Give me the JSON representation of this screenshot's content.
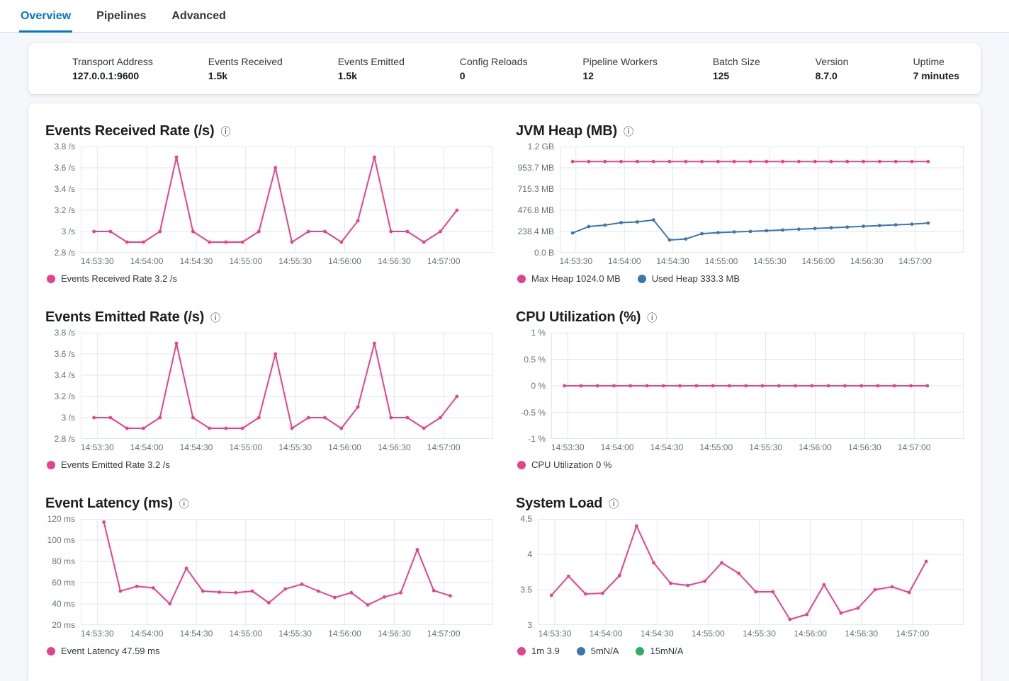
{
  "tabs": [
    {
      "label": "Overview",
      "active": true
    },
    {
      "label": "Pipelines",
      "active": false
    },
    {
      "label": "Advanced",
      "active": false
    }
  ],
  "stats": {
    "items": [
      {
        "label": "Transport Address",
        "value": "127.0.0.1:9600"
      },
      {
        "label": "Events Received",
        "value": "1.5k"
      },
      {
        "label": "Events Emitted",
        "value": "1.5k"
      },
      {
        "label": "Config Reloads",
        "value": "0"
      },
      {
        "label": "Pipeline Workers",
        "value": "12"
      },
      {
        "label": "Batch Size",
        "value": "125"
      },
      {
        "label": "Version",
        "value": "8.7.0"
      },
      {
        "label": "Uptime",
        "value": "7 minutes"
      }
    ]
  },
  "ui": {
    "info_icon": "ⓘ"
  },
  "colors": {
    "accent_blue": "#0077cc",
    "pink": "#e8418c",
    "blue": "#3c76b0",
    "green": "#2dae67",
    "grid": "#e3e6ec"
  },
  "chart_data": [
    {
      "type": "line",
      "title": "Events Received Rate (/s)",
      "x_ticks": [
        "14:53:30",
        "14:54:00",
        "14:54:30",
        "14:55:00",
        "14:55:30",
        "14:56:00",
        "14:56:30",
        "14:57:00"
      ],
      "x_tick_interval_s": 30,
      "x_domain": [
        -10,
        240
      ],
      "y_ticks": [
        "3.8 /s",
        "3.6 /s",
        "3.4 /s",
        "3.2 /s",
        "3 /s",
        "2.8 /s"
      ],
      "ylim": [
        2.8,
        3.8
      ],
      "grid": true,
      "series": [
        {
          "name": "Events Received Rate",
          "color": "#e8418c",
          "t0": -2,
          "step": 10,
          "values": [
            3,
            3,
            2.9,
            2.9,
            3,
            3.7,
            3,
            2.9,
            2.9,
            2.9,
            3,
            3.6,
            2.9,
            3,
            3,
            2.9,
            3.1,
            3.7,
            3,
            3,
            2.9,
            3,
            3.2
          ]
        }
      ],
      "legend": [
        {
          "label": "Events Received Rate 3.2 /s",
          "color": "#e8418c"
        }
      ]
    },
    {
      "type": "line",
      "title": "JVM Heap (MB)",
      "x_ticks": [
        "14:53:30",
        "14:54:00",
        "14:54:30",
        "14:55:00",
        "14:55:30",
        "14:56:00",
        "14:56:30",
        "14:57:00"
      ],
      "x_tick_interval_s": 30,
      "x_domain": [
        -10,
        240
      ],
      "y_ticks": [
        "1.2 GB",
        "953.7 MB",
        "715.3 MB",
        "476.8 MB",
        "238.4 MB",
        "0.0 B"
      ],
      "ylim": [
        0,
        1192.1
      ],
      "grid": true,
      "series": [
        {
          "name": "Max Heap",
          "color": "#e8418c",
          "t0": -2,
          "step": 10,
          "values": [
            1024,
            1024,
            1024,
            1024,
            1024,
            1024,
            1024,
            1024,
            1024,
            1024,
            1024,
            1024,
            1024,
            1024,
            1024,
            1024,
            1024,
            1024,
            1024,
            1024,
            1024,
            1024,
            1024
          ]
        },
        {
          "name": "Used Heap",
          "color": "#3c76b0",
          "t0": -2,
          "step": 10,
          "values": [
            222,
            294,
            310,
            338,
            346,
            368,
            143,
            154,
            214,
            226,
            234,
            239,
            247,
            255,
            264,
            272,
            280,
            288,
            297,
            305,
            313,
            321,
            333.3
          ]
        }
      ],
      "legend": [
        {
          "label": "Max Heap 1024.0 MB",
          "color": "#e8418c"
        },
        {
          "label": "Used Heap 333.3 MB",
          "color": "#3c76b0"
        }
      ]
    },
    {
      "type": "line",
      "title": "Events Emitted Rate (/s)",
      "x_ticks": [
        "14:53:30",
        "14:54:00",
        "14:54:30",
        "14:55:00",
        "14:55:30",
        "14:56:00",
        "14:56:30",
        "14:57:00"
      ],
      "x_tick_interval_s": 30,
      "x_domain": [
        -10,
        240
      ],
      "y_ticks": [
        "3.8 /s",
        "3.6 /s",
        "3.4 /s",
        "3.2 /s",
        "3 /s",
        "2.8 /s"
      ],
      "ylim": [
        2.8,
        3.8
      ],
      "grid": true,
      "series": [
        {
          "name": "Events Emitted Rate",
          "color": "#e8418c",
          "t0": -2,
          "step": 10,
          "values": [
            3,
            3,
            2.9,
            2.9,
            3,
            3.7,
            3,
            2.9,
            2.9,
            2.9,
            3,
            3.6,
            2.9,
            3,
            3,
            2.9,
            3.1,
            3.7,
            3,
            3,
            2.9,
            3,
            3.2
          ]
        }
      ],
      "legend": [
        {
          "label": "Events Emitted Rate 3.2 /s",
          "color": "#e8418c"
        }
      ]
    },
    {
      "type": "line",
      "title": "CPU Utilization (%)",
      "x_ticks": [
        "14:53:30",
        "14:54:00",
        "14:54:30",
        "14:55:00",
        "14:55:30",
        "14:56:00",
        "14:56:30",
        "14:57:00"
      ],
      "x_tick_interval_s": 30,
      "x_domain": [
        -10,
        240
      ],
      "y_ticks": [
        "1 %",
        "0.5 %",
        "0 %",
        "-0.5 %",
        "-1 %"
      ],
      "ylim": [
        -1,
        1
      ],
      "grid": true,
      "series": [
        {
          "name": "CPU Utilization",
          "color": "#e8418c",
          "t0": -2,
          "step": 10,
          "values": [
            0,
            0,
            0,
            0,
            0,
            0,
            0,
            0,
            0,
            0,
            0,
            0,
            0,
            0,
            0,
            0,
            0,
            0,
            0,
            0,
            0,
            0,
            0
          ]
        }
      ],
      "legend": [
        {
          "label": "CPU Utilization 0 %",
          "color": "#e8418c"
        }
      ]
    },
    {
      "type": "line",
      "title": "Event Latency (ms)",
      "x_ticks": [
        "14:53:30",
        "14:54:00",
        "14:54:30",
        "14:55:00",
        "14:55:30",
        "14:56:00",
        "14:56:30",
        "14:57:00"
      ],
      "x_tick_interval_s": 30,
      "x_domain": [
        -10,
        240
      ],
      "y_ticks": [
        "120 ms",
        "100 ms",
        "80 ms",
        "60 ms",
        "40 ms",
        "20 ms"
      ],
      "ylim": [
        20,
        120
      ],
      "grid": true,
      "series": [
        {
          "name": "Event Latency",
          "color": "#e8418c",
          "t0": 4,
          "step": 10,
          "values": [
            117,
            52,
            56.5,
            55,
            40,
            73.5,
            52,
            51,
            50.5,
            52,
            41,
            54,
            58.5,
            52,
            46,
            50.5,
            39,
            46.5,
            50.5,
            91,
            52.5,
            47.59
          ]
        }
      ],
      "legend": [
        {
          "label": "Event Latency 47.59 ms",
          "color": "#e8418c"
        }
      ]
    },
    {
      "type": "line",
      "title": "System Load",
      "x_ticks": [
        "14:53:30",
        "14:54:00",
        "14:54:30",
        "14:55:00",
        "14:55:30",
        "14:56:00",
        "14:56:30",
        "14:57:00"
      ],
      "x_tick_interval_s": 30,
      "x_domain": [
        -10,
        240
      ],
      "y_ticks": [
        "4.5",
        "4",
        "3.5",
        "3"
      ],
      "ylim": [
        3,
        4.5
      ],
      "grid": true,
      "series": [
        {
          "name": "1m",
          "color": "#e8418c",
          "t0": -2,
          "step": 10,
          "values": [
            3.42,
            3.69,
            3.44,
            3.45,
            3.7,
            4.4,
            3.88,
            3.59,
            3.56,
            3.62,
            3.88,
            3.73,
            3.47,
            3.47,
            3.08,
            3.15,
            3.57,
            3.17,
            3.24,
            3.5,
            3.54,
            3.46,
            3.9
          ]
        }
      ],
      "legend": [
        {
          "label": "1m 3.9",
          "color": "#e8418c"
        },
        {
          "label": "5mN/A",
          "color": "#3c76b0"
        },
        {
          "label": "15mN/A",
          "color": "#2dae67"
        }
      ]
    }
  ]
}
